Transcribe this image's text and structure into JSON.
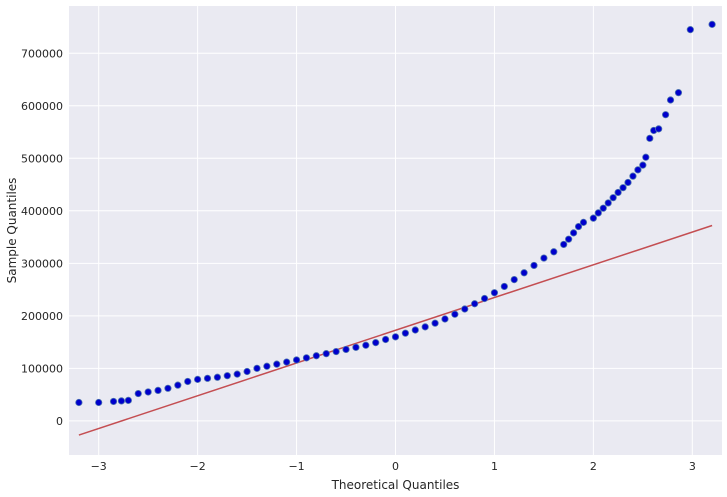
{
  "chart_data": {
    "type": "scatter",
    "title": "",
    "xlabel": "Theoretical Quantiles",
    "ylabel": "Sample Quantiles",
    "xlim": [
      -3.3,
      3.3
    ],
    "ylim": [
      -65000,
      790000
    ],
    "grid": true,
    "background": "#eaeaf2",
    "x_ticks": [
      {
        "value": -3,
        "label": "−3"
      },
      {
        "value": -2,
        "label": "−2"
      },
      {
        "value": -1,
        "label": "−1"
      },
      {
        "value": 0,
        "label": "0"
      },
      {
        "value": 1,
        "label": "1"
      },
      {
        "value": 2,
        "label": "2"
      },
      {
        "value": 3,
        "label": "3"
      }
    ],
    "y_ticks": [
      {
        "value": 0,
        "label": "0"
      },
      {
        "value": 100000,
        "label": "100000"
      },
      {
        "value": 200000,
        "label": "200000"
      },
      {
        "value": 300000,
        "label": "300000"
      },
      {
        "value": 400000,
        "label": "400000"
      },
      {
        "value": 500000,
        "label": "500000"
      },
      {
        "value": 600000,
        "label": "600000"
      },
      {
        "value": 700000,
        "label": "700000"
      }
    ],
    "series": [
      {
        "kind": "points",
        "color": "#0000cc",
        "edge_color": "#4c72b0",
        "points": [
          [
            -3.2,
            35000
          ],
          [
            -3.0,
            35000
          ],
          [
            -2.85,
            37000
          ],
          [
            -2.77,
            38000
          ],
          [
            -2.7,
            39000
          ],
          [
            -2.6,
            52000
          ],
          [
            -2.5,
            55000
          ],
          [
            -2.4,
            58000
          ],
          [
            -2.3,
            62000
          ],
          [
            -2.2,
            68000
          ],
          [
            -2.1,
            75000
          ],
          [
            -2.0,
            79000
          ],
          [
            -1.9,
            81000
          ],
          [
            -1.8,
            83000
          ],
          [
            -1.7,
            86000
          ],
          [
            -1.6,
            89000
          ],
          [
            -1.5,
            94000
          ],
          [
            -1.4,
            100000
          ],
          [
            -1.3,
            104000
          ],
          [
            -1.2,
            108000
          ],
          [
            -1.1,
            112000
          ],
          [
            -1.0,
            116000
          ],
          [
            -0.9,
            120000
          ],
          [
            -0.8,
            124000
          ],
          [
            -0.7,
            128000
          ],
          [
            -0.6,
            132000
          ],
          [
            -0.5,
            136000
          ],
          [
            -0.4,
            140000
          ],
          [
            -0.3,
            144000
          ],
          [
            -0.2,
            149000
          ],
          [
            -0.1,
            155000
          ],
          [
            0.0,
            160000
          ],
          [
            0.1,
            167000
          ],
          [
            0.2,
            173000
          ],
          [
            0.3,
            179000
          ],
          [
            0.4,
            186000
          ],
          [
            0.5,
            194000
          ],
          [
            0.6,
            203000
          ],
          [
            0.7,
            213000
          ],
          [
            0.8,
            223000
          ],
          [
            0.9,
            233000
          ],
          [
            1.0,
            244000
          ],
          [
            1.1,
            256000
          ],
          [
            1.2,
            269000
          ],
          [
            1.3,
            282000
          ],
          [
            1.4,
            296000
          ],
          [
            1.5,
            310000
          ],
          [
            1.6,
            322000
          ],
          [
            1.7,
            336000
          ],
          [
            1.75,
            346000
          ],
          [
            1.8,
            358000
          ],
          [
            1.85,
            370000
          ],
          [
            1.9,
            378000
          ],
          [
            2.0,
            386000
          ],
          [
            2.05,
            396000
          ],
          [
            2.1,
            405000
          ],
          [
            2.15,
            415000
          ],
          [
            2.2,
            425000
          ],
          [
            2.25,
            435000
          ],
          [
            2.3,
            444000
          ],
          [
            2.35,
            454000
          ],
          [
            2.4,
            466000
          ],
          [
            2.45,
            478000
          ],
          [
            2.5,
            487000
          ],
          [
            2.53,
            502000
          ],
          [
            2.57,
            538000
          ],
          [
            2.61,
            553000
          ],
          [
            2.66,
            556000
          ],
          [
            2.73,
            583000
          ],
          [
            2.78,
            611000
          ],
          [
            2.86,
            625000
          ],
          [
            2.98,
            745000
          ],
          [
            3.2,
            755000
          ]
        ]
      },
      {
        "kind": "line",
        "color": "#c44e52",
        "points": [
          [
            -3.2,
            -27000
          ],
          [
            3.2,
            372000
          ]
        ]
      }
    ]
  }
}
